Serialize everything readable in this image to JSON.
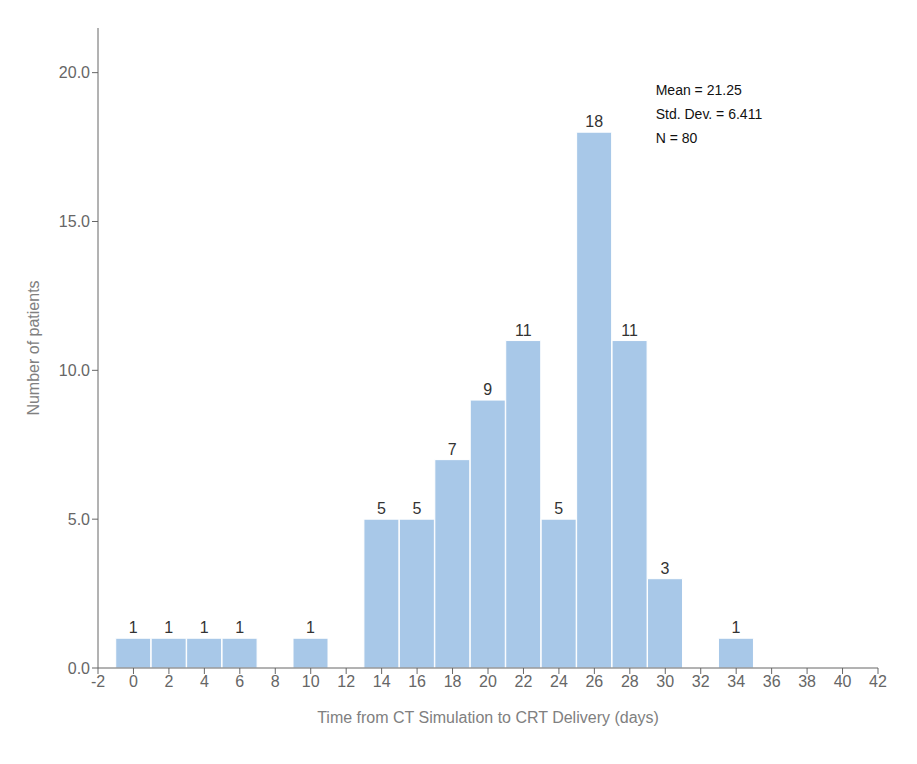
{
  "chart_data": {
    "type": "bar",
    "x": [
      0,
      2,
      4,
      6,
      10,
      14,
      16,
      18,
      20,
      22,
      24,
      26,
      28,
      30,
      34
    ],
    "values": [
      1,
      1,
      1,
      1,
      1,
      5,
      5,
      7,
      9,
      11,
      5,
      18,
      11,
      3,
      1
    ],
    "color": "#a8c8e8",
    "xlabel": "Time from CT Simulation to CRT Delivery (days)",
    "ylabel": "Number of patients",
    "xlim": [
      -2,
      42
    ],
    "ylim": [
      0,
      21.5
    ],
    "xticks": [
      -2,
      0,
      2,
      4,
      6,
      8,
      10,
      12,
      14,
      16,
      18,
      20,
      22,
      24,
      26,
      28,
      30,
      32,
      34,
      36,
      38,
      40,
      42
    ],
    "yticks": [
      {
        "value": 0,
        "label": "0.0"
      },
      {
        "value": 5,
        "label": "5.0"
      },
      {
        "value": 10,
        "label": "10.0"
      },
      {
        "value": 15,
        "label": "15.0"
      },
      {
        "value": 20,
        "label": "20.0"
      }
    ],
    "annotation": "Mean = 21.25\nStd. Dev. = 6.411\nN = 80",
    "data_labels": true,
    "grid": false
  }
}
